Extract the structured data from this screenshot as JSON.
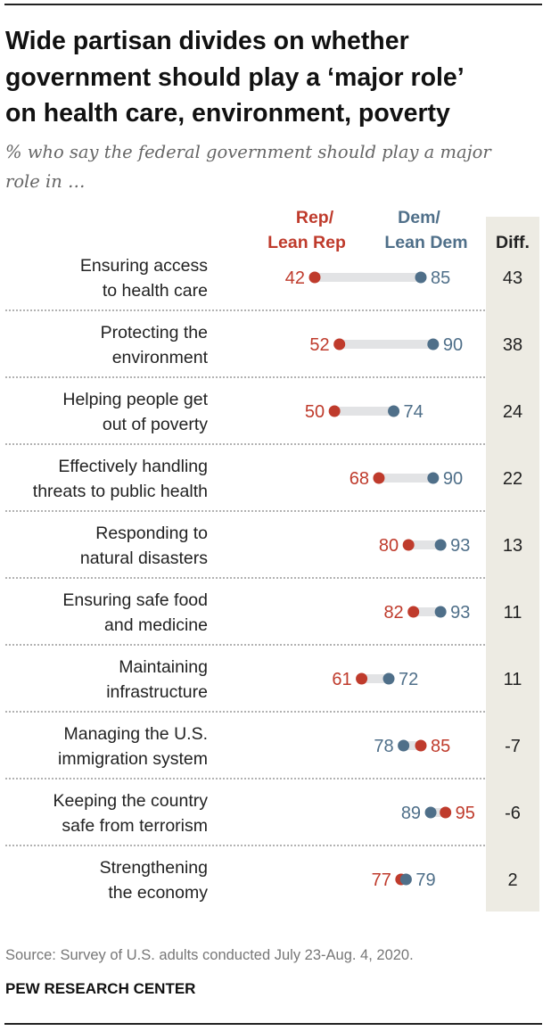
{
  "title_lines": [
    "Wide partisan divides on whether",
    "government should play a ‘major role’",
    "on health care, environment, poverty"
  ],
  "subtitle_lines": [
    "% who say the federal government should play a major",
    "role in …"
  ],
  "colors": {
    "rep": "#bf3b2c",
    "dem": "#4f6f89",
    "bar": "#e2e3e5",
    "diff_bg": "#edebe3"
  },
  "chart_data": {
    "type": "dot",
    "legend": {
      "rep": "Rep/\nLean Rep",
      "rep_lines": [
        "Rep/",
        "Lean Rep"
      ],
      "dem_lines": [
        "Dem/",
        "Lean Dem"
      ],
      "diff": "Diff."
    },
    "categories": [
      {
        "lines": [
          "Ensuring access",
          "to health care"
        ],
        "rep": 42,
        "dem": 85,
        "diff": "43"
      },
      {
        "lines": [
          "Protecting the",
          "environment"
        ],
        "rep": 52,
        "dem": 90,
        "diff": "38"
      },
      {
        "lines": [
          "Helping people get",
          "out of poverty"
        ],
        "rep": 50,
        "dem": 74,
        "diff": "24"
      },
      {
        "lines": [
          "Effectively handling",
          "threats to public health"
        ],
        "rep": 68,
        "dem": 90,
        "diff": "22"
      },
      {
        "lines": [
          "Responding to",
          "natural disasters"
        ],
        "rep": 80,
        "dem": 93,
        "diff": "13"
      },
      {
        "lines": [
          "Ensuring safe food",
          "and medicine"
        ],
        "rep": 82,
        "dem": 93,
        "diff": "11"
      },
      {
        "lines": [
          "Maintaining",
          "infrastructure"
        ],
        "rep": 61,
        "dem": 72,
        "diff": "11"
      },
      {
        "lines": [
          "Managing the U.S.",
          "immigration system"
        ],
        "rep": 85,
        "dem": 78,
        "diff": "-7"
      },
      {
        "lines": [
          "Keeping the country",
          "safe from terrorism"
        ],
        "rep": 95,
        "dem": 89,
        "diff": "-6"
      },
      {
        "lines": [
          "Strengthening",
          "the economy"
        ],
        "rep": 77,
        "dem": 79,
        "diff": "2"
      }
    ]
  },
  "source": "Source: Survey of U.S. adults conducted July 23-Aug. 4, 2020.",
  "organization": "PEW RESEARCH CENTER"
}
